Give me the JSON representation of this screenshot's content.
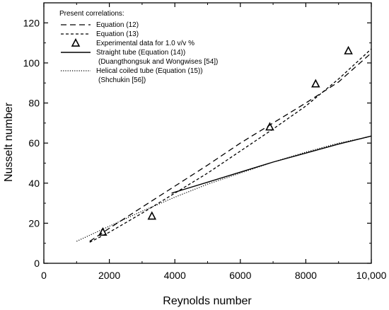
{
  "chart_data": {
    "type": "line",
    "xlabel": "Reynolds number",
    "ylabel": "Nusselt number",
    "xlim": [
      0,
      10000
    ],
    "ylim": [
      0,
      130
    ],
    "xticks": [
      0,
      2000,
      4000,
      6000,
      8000,
      10000
    ],
    "xtick_labels": [
      "0",
      "2000",
      "4000",
      "6000",
      "8000",
      "10,000"
    ],
    "yticks": [
      0,
      20,
      40,
      60,
      80,
      100,
      120
    ],
    "ytick_labels": [
      "0",
      "20",
      "40",
      "60",
      "80",
      "100",
      "120"
    ],
    "grid": false,
    "legend": {
      "placement": "top-left",
      "header": "Present correlations:",
      "entries": [
        {
          "lines": [
            "Equation (12)"
          ]
        },
        {
          "lines": [
            "Equation (13)"
          ]
        },
        {
          "lines": [
            "Experimental data for 1.0 v/v %"
          ]
        },
        {
          "lines": [
            "Straight tube (Equation (14))",
            "(Duangthongsuk and Wongwises [54])"
          ]
        },
        {
          "lines": [
            "Helical coiled tube (Equation (15))",
            "(Shchukin [56])"
          ]
        }
      ]
    },
    "series": [
      {
        "name": "Equation (12)",
        "style": "dashed",
        "x": [
          1400,
          2000,
          3000,
          4000,
          5000,
          6000,
          7000,
          8000,
          9000,
          10000
        ],
        "y": [
          11,
          17.5,
          28,
          38.5,
          49,
          60,
          70,
          80,
          90.5,
          105
        ]
      },
      {
        "name": "Equation (13)",
        "style": "dashed-short",
        "x": [
          1400,
          2000,
          3000,
          4000,
          5000,
          6000,
          7000,
          8000,
          9000,
          10000
        ],
        "y": [
          10.5,
          15.5,
          25,
          35,
          45,
          56,
          67,
          78.5,
          92,
          107
        ]
      },
      {
        "name": "Straight tube (Equation (14))",
        "style": "solid",
        "x": [
          3900,
          5000,
          6000,
          7000,
          8000,
          9000,
          10000
        ],
        "y": [
          35,
          40.5,
          45.5,
          50.5,
          55,
          59.5,
          63.5
        ]
      },
      {
        "name": "Helical coiled tube (Equation (15))",
        "style": "dotted",
        "x": [
          1000,
          2000,
          3000,
          4000,
          5000,
          6000,
          7000,
          8000,
          9000,
          9900
        ],
        "y": [
          11,
          18.5,
          26,
          33,
          39.5,
          45,
          50.5,
          55.5,
          60,
          63
        ]
      },
      {
        "name": "Experimental data for 1.0 v/v %",
        "style": "markers-triangle",
        "x": [
          1800,
          3300,
          6900,
          8300,
          9300
        ],
        "y": [
          15.5,
          23.5,
          68,
          89.5,
          106
        ]
      }
    ]
  }
}
